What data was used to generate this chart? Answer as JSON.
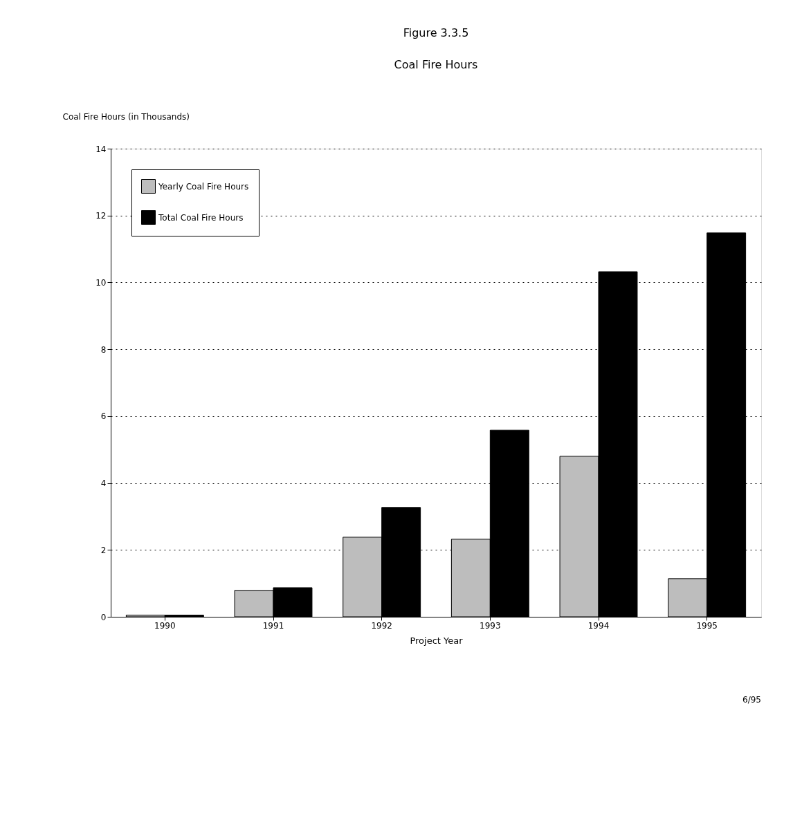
{
  "chart_data": {
    "type": "bar",
    "title": "Figure 3.3.5",
    "subtitle": "Coal Fire Hours",
    "xlabel": "Project Year",
    "ylabel": "Coal Fire Hours (in Thousands)",
    "categories": [
      "1990",
      "1991",
      "1992",
      "1993",
      "1994",
      "1995"
    ],
    "series": [
      {
        "name": "Yearly Coal Fire Hours",
        "color": "#bdbdbd",
        "values": [
          0.05,
          0.79,
          2.38,
          2.32,
          4.8,
          1.14
        ]
      },
      {
        "name": "Total Coal Fire Hours",
        "color": "#000000",
        "values": [
          0.05,
          0.87,
          3.27,
          5.58,
          10.32,
          11.48
        ]
      }
    ],
    "ylim": [
      0,
      14
    ],
    "yticks": [
      0,
      2,
      4,
      6,
      8,
      10,
      12,
      14
    ],
    "grid": "y",
    "legend": "top left",
    "annotations": [
      "6/95"
    ]
  }
}
